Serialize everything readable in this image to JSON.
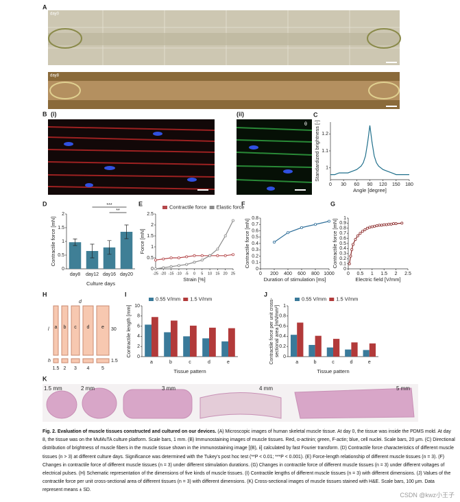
{
  "panel_labels": {
    "a": "A",
    "b": "B",
    "b1": "(i)",
    "b2": "(ii)",
    "c": "C",
    "d": "D",
    "e": "E",
    "f": "F",
    "g": "G",
    "h": "H",
    "i": "I",
    "j": "J",
    "k": "K"
  },
  "image_labels": {
    "day0": "day0",
    "day8": "day8",
    "theta": "θ"
  },
  "diagram_h": {
    "patterns": [
      "a",
      "b",
      "c",
      "d",
      "e"
    ],
    "width_symbol": "d",
    "length_symbol": "l",
    "height_symbol": "h",
    "length_value": "30",
    "height_value": "1.5",
    "widths": [
      "1.5",
      "2",
      "3",
      "4",
      "5"
    ]
  },
  "sections_k": [
    "1.5 mm",
    "2 mm",
    "3 mm",
    "4 mm",
    "5 mm"
  ],
  "chart_data": [
    {
      "type": "line",
      "xlabel": "Angle [degree]",
      "ylabel": "Standardized brightness [-]",
      "color": "#1f6f8b",
      "x": [
        0,
        10,
        20,
        30,
        40,
        50,
        60,
        70,
        75,
        80,
        85,
        90,
        95,
        100,
        105,
        110,
        120,
        130,
        140,
        150,
        160,
        170,
        180
      ],
      "values": [
        0.96,
        0.96,
        0.97,
        0.97,
        0.97,
        0.98,
        0.99,
        1.01,
        1.03,
        1.07,
        1.15,
        1.25,
        1.15,
        1.07,
        1.03,
        1.01,
        0.99,
        0.98,
        0.97,
        0.96,
        0.96,
        0.96,
        0.96
      ],
      "xlim": [
        0,
        180
      ],
      "xticks": [
        0,
        30,
        60,
        90,
        120,
        150,
        180
      ],
      "ylim": [
        0.93,
        1.27
      ],
      "yticks": [
        1,
        1.1,
        1.2
      ]
    },
    {
      "type": "bar",
      "xlabel": "Culture days",
      "ylabel": "Contractile force [mN]",
      "color": "#3f7f96",
      "categories": [
        "day8",
        "day12",
        "day16",
        "day20"
      ],
      "values": [
        0.97,
        0.65,
        0.78,
        1.35
      ],
      "errors": [
        0.12,
        0.25,
        0.25,
        0.25
      ],
      "ylim": [
        0,
        2
      ],
      "yticks": [
        0,
        0.5,
        1,
        1.5,
        2
      ],
      "annotations": [
        "***",
        "**"
      ]
    },
    {
      "type": "line",
      "markers": true,
      "xlabel": "Strain [%]",
      "ylabel": "Force [mN]",
      "legend": "top",
      "x": [
        -25,
        -20,
        -15,
        -10,
        -5,
        0,
        5,
        10,
        15,
        20,
        25
      ],
      "series": [
        {
          "name": "Contractile force",
          "color": "#b5484b",
          "values": [
            0.4,
            0.45,
            0.5,
            0.5,
            0.55,
            0.6,
            0.6,
            0.6,
            0.6,
            0.6,
            0.65
          ]
        },
        {
          "name": "Elastic force",
          "color": "#8a8a8a",
          "values": [
            0,
            0.05,
            0.1,
            0.15,
            0.2,
            0.3,
            0.4,
            0.6,
            0.9,
            1.5,
            2.2
          ]
        }
      ],
      "xlim": [
        -25,
        25
      ],
      "xticks": [
        -25,
        -20,
        -15,
        -10,
        -5,
        0,
        5,
        10,
        15,
        20,
        25
      ],
      "ylim": [
        0,
        2.5
      ],
      "yticks": [
        0,
        0.5,
        1,
        1.5,
        2,
        2.5
      ]
    },
    {
      "type": "line",
      "markers": true,
      "xlabel": "Duration of stimulation [ms]",
      "ylabel": "Contractile force [mN]",
      "color": "#2f6f9a",
      "x": [
        200,
        400,
        600,
        800,
        1000
      ],
      "values": [
        0.42,
        0.57,
        0.65,
        0.7,
        0.75
      ],
      "xlim": [
        0,
        1000
      ],
      "xticks": [
        0,
        200,
        400,
        600,
        800,
        1000
      ],
      "ylim": [
        0,
        0.8
      ],
      "yticks": [
        0,
        0.1,
        0.2,
        0.3,
        0.4,
        0.5,
        0.6,
        0.7,
        0.8
      ]
    },
    {
      "type": "line",
      "markers": true,
      "xlabel": "Electric field [V/mm]",
      "ylabel": "Contractile force [mN]",
      "color": "#8b2a2a",
      "x": [
        0.05,
        0.1,
        0.15,
        0.2,
        0.3,
        0.4,
        0.5,
        0.6,
        0.7,
        0.8,
        0.9,
        1,
        1.1,
        1.2,
        1.3,
        1.4,
        1.5,
        1.6,
        1.7,
        1.8,
        1.9,
        2,
        2.25
      ],
      "values": [
        0.1,
        0.25,
        0.38,
        0.48,
        0.58,
        0.65,
        0.7,
        0.74,
        0.77,
        0.8,
        0.82,
        0.83,
        0.84,
        0.85,
        0.86,
        0.86,
        0.87,
        0.87,
        0.88,
        0.88,
        0.89,
        0.89,
        0.9
      ],
      "xlim": [
        0,
        2.5
      ],
      "xticks": [
        0,
        0.5,
        1,
        1.5,
        2,
        2.5
      ],
      "ylim": [
        0,
        1
      ],
      "yticks": [
        0,
        0.1,
        0.2,
        0.3,
        0.4,
        0.5,
        0.6,
        0.7,
        0.8,
        0.9,
        1
      ]
    },
    {
      "type": "grouped_bar",
      "xlabel": "Tissue pattern",
      "ylabel": "Contractile length [mm]",
      "legend": "top",
      "categories": [
        "a",
        "b",
        "c",
        "d",
        "e"
      ],
      "series": [
        {
          "name": "0.55 V/mm",
          "color": "#3a7a9a",
          "values": [
            6.3,
            4.8,
            4.0,
            3.6,
            3.0
          ]
        },
        {
          "name": "1.5 V/mm",
          "color": "#b23a3a",
          "values": [
            7.8,
            7.1,
            6.1,
            5.7,
            5.6
          ]
        }
      ],
      "ylim": [
        0,
        10
      ],
      "yticks": [
        0,
        2,
        4,
        6,
        8,
        10
      ]
    },
    {
      "type": "grouped_bar",
      "xlabel": "Tissue pattern",
      "ylabel": [
        "Contractile force per unit cross-",
        "sectional area [mN/mm²]"
      ],
      "legend": "top",
      "categories": [
        "a",
        "b",
        "c",
        "d",
        "e"
      ],
      "series": [
        {
          "name": "0.55 V/mm",
          "color": "#3a7a9a",
          "values": [
            0.43,
            0.23,
            0.18,
            0.14,
            0.13
          ]
        },
        {
          "name": "1.5 V/mm",
          "color": "#b23a3a",
          "values": [
            0.67,
            0.41,
            0.35,
            0.28,
            0.26
          ]
        }
      ],
      "ylim": [
        0,
        1
      ],
      "yticks": [
        0,
        0.2,
        0.4,
        0.6,
        0.8,
        1
      ]
    }
  ],
  "caption": {
    "title": "Fig. 2. Evaluation of muscle tissues constructed and cultured on our devices.",
    "body": "(A) Microscopic images of human skeletal muscle tissue. At day 0, the tissue was inside the PDMS mold. At day 8, the tissue was on the MuMuTA culture platform. Scale bars, 1 mm. (B) Immunostaining images of muscle tissues. Red, α-actinin; green, F-actin; blue, cell nuclei. Scale bars, 20 μm. (C) Directional distribution of brightness of muscle fibers in the muscle tissue shown in the immunostaining image [(B), ii] calculated by fast Fourier transform. (D) Contractile force characteristics of different muscle tissues (n > 3) at different culture days. Significance was determined with the Tukey's post hoc test (**P < 0.01; ***P < 0.001). (E) Force-length relationship of different muscle tissues (n = 3). (F) Changes in contractile force of different muscle tissues (n = 3) under different stimulation durations. (G) Changes in contractile force of different muscle tissues (n = 3) under different voltages of electrical pulses. (H) Schematic representation of the dimensions of five kinds of muscle tissues. (I) Contractile lengths of different muscle tissues (n = 3) with different dimensions. (J) Values of the contractile force per unit cross-sectional area of different tissues (n = 3) with different dimensions. (K) Cross-sectional images of muscle tissues stained with H&E. Scale bars, 100 μm. Data represent means ± SD."
  },
  "watermark": "CSDN @kwz小王子"
}
